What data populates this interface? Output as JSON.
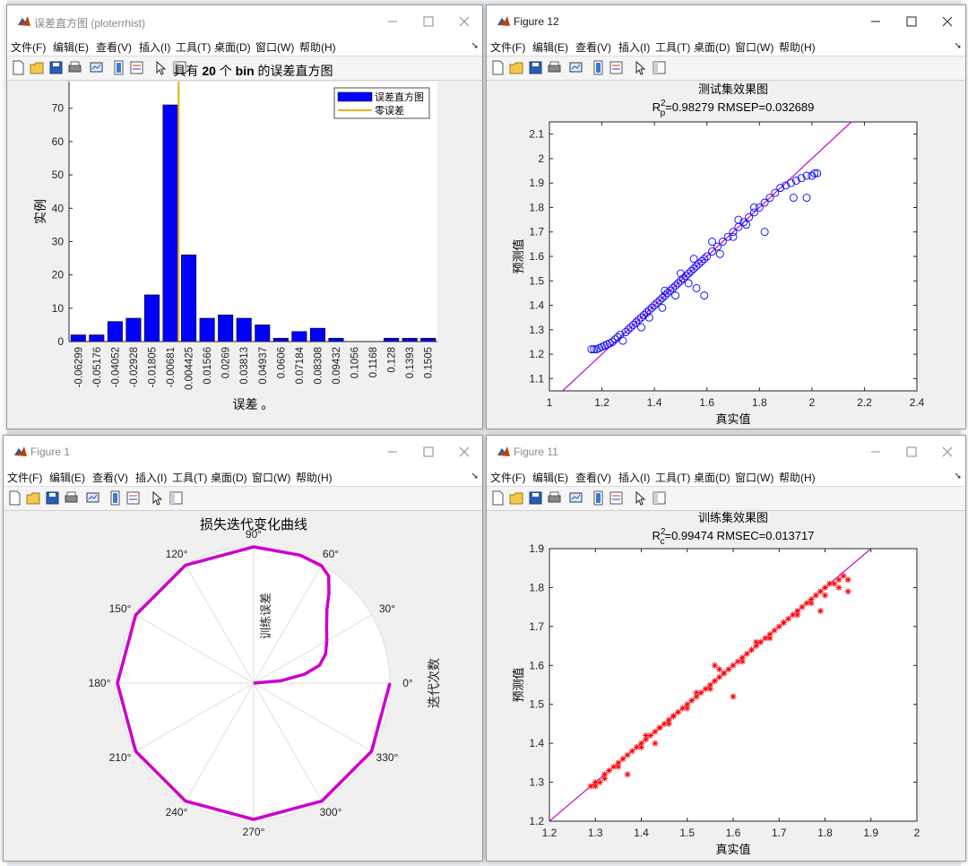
{
  "windows": {
    "hist": {
      "title": "误差直方图 (ploterrhist)",
      "menu": [
        "文件(F)",
        "编辑(E)",
        "查看(V)",
        "插入(I)",
        "工具(T)",
        "桌面(D)",
        "窗口(W)",
        "帮助(H)"
      ],
      "chart_data": {
        "type": "bar",
        "title_parts": [
          "具有 ",
          "20",
          " 个 ",
          "bin",
          " 的误差直方图"
        ],
        "xlabel": "误差 。",
        "ylabel": "实例",
        "categories": [
          "-0.06299",
          "-0.05176",
          "-0.04052",
          "-0.02928",
          "-0.01805",
          "-0.00681",
          "0.004425",
          "0.01566",
          "0.0269",
          "0.03813",
          "0.04937",
          "0.0606",
          "0.07184",
          "0.08308",
          "0.09432",
          "0.1056",
          "0.1168",
          "0.128",
          "0.1393",
          "0.1505"
        ],
        "values": [
          2,
          2,
          6,
          7,
          14,
          71,
          26,
          7,
          8,
          7,
          5,
          1,
          3,
          4,
          1,
          0,
          0,
          1,
          1,
          1
        ],
        "ylim": [
          0,
          78
        ],
        "yticks": [
          "0",
          "10",
          "20",
          "30",
          "40",
          "50",
          "60",
          "70"
        ],
        "zero_error_line": 0,
        "legend": {
          "placement": "top-right",
          "entries": [
            "误差直方图",
            "零误差"
          ]
        },
        "bar_color": "#0000ff",
        "zero_line_color": "#edb120"
      }
    },
    "fig12": {
      "title": "Figure 12",
      "menu": [
        "文件(F)",
        "编辑(E)",
        "查看(V)",
        "插入(I)",
        "工具(T)",
        "桌面(D)",
        "窗口(W)",
        "帮助(H)"
      ],
      "chart_data": {
        "type": "scatter",
        "title": "测试集效果图",
        "subtitle_r": "R",
        "subtitle_sup": "2",
        "subtitle_sub": "p",
        "subtitle_rest": "=0.98279  RMSEP=0.032689",
        "xlabel": "真实值",
        "ylabel": "预测值",
        "xlim": [
          1,
          2.4
        ],
        "ylim": [
          1.05,
          2.15
        ],
        "xticks": [
          "1",
          "1.2",
          "1.4",
          "1.6",
          "1.8",
          "2",
          "2.2",
          "2.4"
        ],
        "yticks": [
          "1.1",
          "1.2",
          "1.3",
          "1.4",
          "1.5",
          "1.6",
          "1.7",
          "1.8",
          "1.9",
          "2",
          "2.1"
        ],
        "marker": "circle",
        "marker_color": "#0000ff",
        "line_color": "#cc00cc",
        "points": [
          [
            1.16,
            1.22
          ],
          [
            1.17,
            1.22
          ],
          [
            1.18,
            1.22
          ],
          [
            1.19,
            1.225
          ],
          [
            1.2,
            1.23
          ],
          [
            1.21,
            1.235
          ],
          [
            1.22,
            1.24
          ],
          [
            1.23,
            1.245
          ],
          [
            1.24,
            1.25
          ],
          [
            1.25,
            1.26
          ],
          [
            1.26,
            1.27
          ],
          [
            1.27,
            1.28
          ],
          [
            1.28,
            1.255
          ],
          [
            1.29,
            1.29
          ],
          [
            1.3,
            1.3
          ],
          [
            1.31,
            1.31
          ],
          [
            1.32,
            1.32
          ],
          [
            1.33,
            1.33
          ],
          [
            1.34,
            1.34
          ],
          [
            1.35,
            1.35
          ],
          [
            1.36,
            1.36
          ],
          [
            1.37,
            1.37
          ],
          [
            1.38,
            1.38
          ],
          [
            1.39,
            1.39
          ],
          [
            1.4,
            1.4
          ],
          [
            1.41,
            1.41
          ],
          [
            1.42,
            1.42
          ],
          [
            1.43,
            1.43
          ],
          [
            1.44,
            1.44
          ],
          [
            1.45,
            1.45
          ],
          [
            1.46,
            1.46
          ],
          [
            1.47,
            1.47
          ],
          [
            1.48,
            1.48
          ],
          [
            1.49,
            1.49
          ],
          [
            1.5,
            1.5
          ],
          [
            1.51,
            1.51
          ],
          [
            1.52,
            1.52
          ],
          [
            1.53,
            1.53
          ],
          [
            1.54,
            1.54
          ],
          [
            1.55,
            1.55
          ],
          [
            1.56,
            1.56
          ],
          [
            1.57,
            1.57
          ],
          [
            1.58,
            1.58
          ],
          [
            1.59,
            1.59
          ],
          [
            1.6,
            1.6
          ],
          [
            1.62,
            1.62
          ],
          [
            1.64,
            1.64
          ],
          [
            1.66,
            1.66
          ],
          [
            1.68,
            1.68
          ],
          [
            1.7,
            1.7
          ],
          [
            1.72,
            1.72
          ],
          [
            1.74,
            1.74
          ],
          [
            1.76,
            1.76
          ],
          [
            1.78,
            1.78
          ],
          [
            1.8,
            1.8
          ],
          [
            1.82,
            1.82
          ],
          [
            1.84,
            1.84
          ],
          [
            1.86,
            1.86
          ],
          [
            1.88,
            1.88
          ],
          [
            1.9,
            1.89
          ],
          [
            1.92,
            1.9
          ],
          [
            1.94,
            1.91
          ],
          [
            1.96,
            1.92
          ],
          [
            1.98,
            1.93
          ],
          [
            2.0,
            1.93
          ],
          [
            2.01,
            1.94
          ],
          [
            2.02,
            1.94
          ],
          [
            1.38,
            1.35
          ],
          [
            1.35,
            1.31
          ],
          [
            1.43,
            1.39
          ],
          [
            1.48,
            1.44
          ],
          [
            1.53,
            1.49
          ],
          [
            1.56,
            1.47
          ],
          [
            1.59,
            1.44
          ],
          [
            1.65,
            1.61
          ],
          [
            1.7,
            1.68
          ],
          [
            1.75,
            1.73
          ],
          [
            1.82,
            1.7
          ],
          [
            1.93,
            1.84
          ],
          [
            1.98,
            1.84
          ],
          [
            1.44,
            1.46
          ],
          [
            1.5,
            1.53
          ],
          [
            1.55,
            1.59
          ],
          [
            1.62,
            1.66
          ],
          [
            1.72,
            1.75
          ],
          [
            1.78,
            1.8
          ]
        ]
      }
    },
    "fig1": {
      "title": "Figure 1",
      "menu": [
        "文件(F)",
        "编辑(E)",
        "查看(V)",
        "插入(I)",
        "工具(T)",
        "桌面(D)",
        "窗口(W)",
        "帮助(H)"
      ],
      "chart_data": {
        "type": "line",
        "coordinate_system": "polar",
        "title": "损失迭代变化曲线",
        "radial_label": "训练误差",
        "side_label": "迭代次数",
        "angle_ticks": [
          "0°",
          "30°",
          "60°",
          "90°",
          "120°",
          "150°",
          "180°",
          "210°",
          "240°",
          "270°",
          "300°",
          "330°"
        ],
        "line_color": "#cc00cc",
        "series_polar": [
          [
            0,
            1.0
          ],
          [
            -30,
            1.0
          ],
          [
            -60,
            1.0
          ],
          [
            -90,
            1.0
          ],
          [
            -120,
            1.0
          ],
          [
            -150,
            1.0
          ],
          [
            -180,
            1.0
          ],
          [
            -210,
            1.0
          ],
          [
            -240,
            1.0
          ],
          [
            -270,
            1.0
          ],
          [
            -290,
            0.999
          ],
          [
            -300,
            0.995
          ],
          [
            -305,
            0.96
          ],
          [
            -310,
            0.86
          ],
          [
            -315,
            0.76
          ],
          [
            -322,
            0.68
          ],
          [
            -330,
            0.62
          ],
          [
            -338,
            0.57
          ],
          [
            -345,
            0.5
          ],
          [
            -350,
            0.38
          ],
          [
            -355,
            0.2
          ],
          [
            -360,
            0.0
          ]
        ]
      }
    },
    "fig11": {
      "title": "Figure 11",
      "menu": [
        "文件(F)",
        "编辑(E)",
        "查看(V)",
        "插入(I)",
        "工具(T)",
        "桌面(D)",
        "窗口(W)",
        "帮助(H)"
      ],
      "chart_data": {
        "type": "scatter",
        "title": "训练集效果图",
        "subtitle_r": "R",
        "subtitle_sup": "2",
        "subtitle_sub": "c",
        "subtitle_rest": "=0.99474  RMSEC=0.013717",
        "xlabel": "真实值",
        "ylabel": "预测值",
        "xlim": [
          1.2,
          2.0
        ],
        "ylim": [
          1.2,
          1.9
        ],
        "xticks": [
          "1.2",
          "1.3",
          "1.4",
          "1.5",
          "1.6",
          "1.7",
          "1.8",
          "1.9",
          "2"
        ],
        "yticks": [
          "1.2",
          "1.3",
          "1.4",
          "1.5",
          "1.6",
          "1.7",
          "1.8",
          "1.9"
        ],
        "marker": "star",
        "marker_color": "#ff0000",
        "line_color": "#cc00cc",
        "points": [
          [
            1.29,
            1.29
          ],
          [
            1.3,
            1.3
          ],
          [
            1.31,
            1.3
          ],
          [
            1.32,
            1.32
          ],
          [
            1.33,
            1.33
          ],
          [
            1.34,
            1.34
          ],
          [
            1.35,
            1.35
          ],
          [
            1.36,
            1.36
          ],
          [
            1.37,
            1.37
          ],
          [
            1.38,
            1.38
          ],
          [
            1.39,
            1.39
          ],
          [
            1.4,
            1.4
          ],
          [
            1.41,
            1.41
          ],
          [
            1.42,
            1.42
          ],
          [
            1.43,
            1.43
          ],
          [
            1.44,
            1.44
          ],
          [
            1.45,
            1.45
          ],
          [
            1.46,
            1.46
          ],
          [
            1.47,
            1.47
          ],
          [
            1.48,
            1.48
          ],
          [
            1.49,
            1.49
          ],
          [
            1.5,
            1.5
          ],
          [
            1.51,
            1.51
          ],
          [
            1.52,
            1.52
          ],
          [
            1.53,
            1.53
          ],
          [
            1.54,
            1.54
          ],
          [
            1.55,
            1.55
          ],
          [
            1.56,
            1.56
          ],
          [
            1.57,
            1.57
          ],
          [
            1.58,
            1.58
          ],
          [
            1.59,
            1.59
          ],
          [
            1.6,
            1.6
          ],
          [
            1.61,
            1.61
          ],
          [
            1.62,
            1.62
          ],
          [
            1.63,
            1.63
          ],
          [
            1.64,
            1.64
          ],
          [
            1.65,
            1.65
          ],
          [
            1.66,
            1.66
          ],
          [
            1.67,
            1.67
          ],
          [
            1.68,
            1.68
          ],
          [
            1.69,
            1.69
          ],
          [
            1.7,
            1.7
          ],
          [
            1.71,
            1.71
          ],
          [
            1.72,
            1.72
          ],
          [
            1.73,
            1.73
          ],
          [
            1.74,
            1.74
          ],
          [
            1.75,
            1.75
          ],
          [
            1.76,
            1.76
          ],
          [
            1.77,
            1.77
          ],
          [
            1.78,
            1.78
          ],
          [
            1.79,
            1.79
          ],
          [
            1.8,
            1.8
          ],
          [
            1.81,
            1.81
          ],
          [
            1.82,
            1.81
          ],
          [
            1.83,
            1.82
          ],
          [
            1.84,
            1.83
          ],
          [
            1.85,
            1.82
          ],
          [
            1.3,
            1.29
          ],
          [
            1.32,
            1.31
          ],
          [
            1.35,
            1.34
          ],
          [
            1.37,
            1.32
          ],
          [
            1.4,
            1.39
          ],
          [
            1.43,
            1.4
          ],
          [
            1.46,
            1.45
          ],
          [
            1.5,
            1.49
          ],
          [
            1.55,
            1.54
          ],
          [
            1.56,
            1.6
          ],
          [
            1.57,
            1.59
          ],
          [
            1.6,
            1.52
          ],
          [
            1.62,
            1.61
          ],
          [
            1.68,
            1.67
          ],
          [
            1.74,
            1.73
          ],
          [
            1.79,
            1.74
          ],
          [
            1.8,
            1.78
          ],
          [
            1.83,
            1.8
          ],
          [
            1.85,
            1.79
          ],
          [
            1.41,
            1.42
          ],
          [
            1.44,
            1.44
          ],
          [
            1.47,
            1.47
          ],
          [
            1.52,
            1.53
          ],
          [
            1.58,
            1.58
          ],
          [
            1.65,
            1.66
          ],
          [
            1.71,
            1.71
          ],
          [
            1.77,
            1.76
          ]
        ]
      }
    }
  }
}
